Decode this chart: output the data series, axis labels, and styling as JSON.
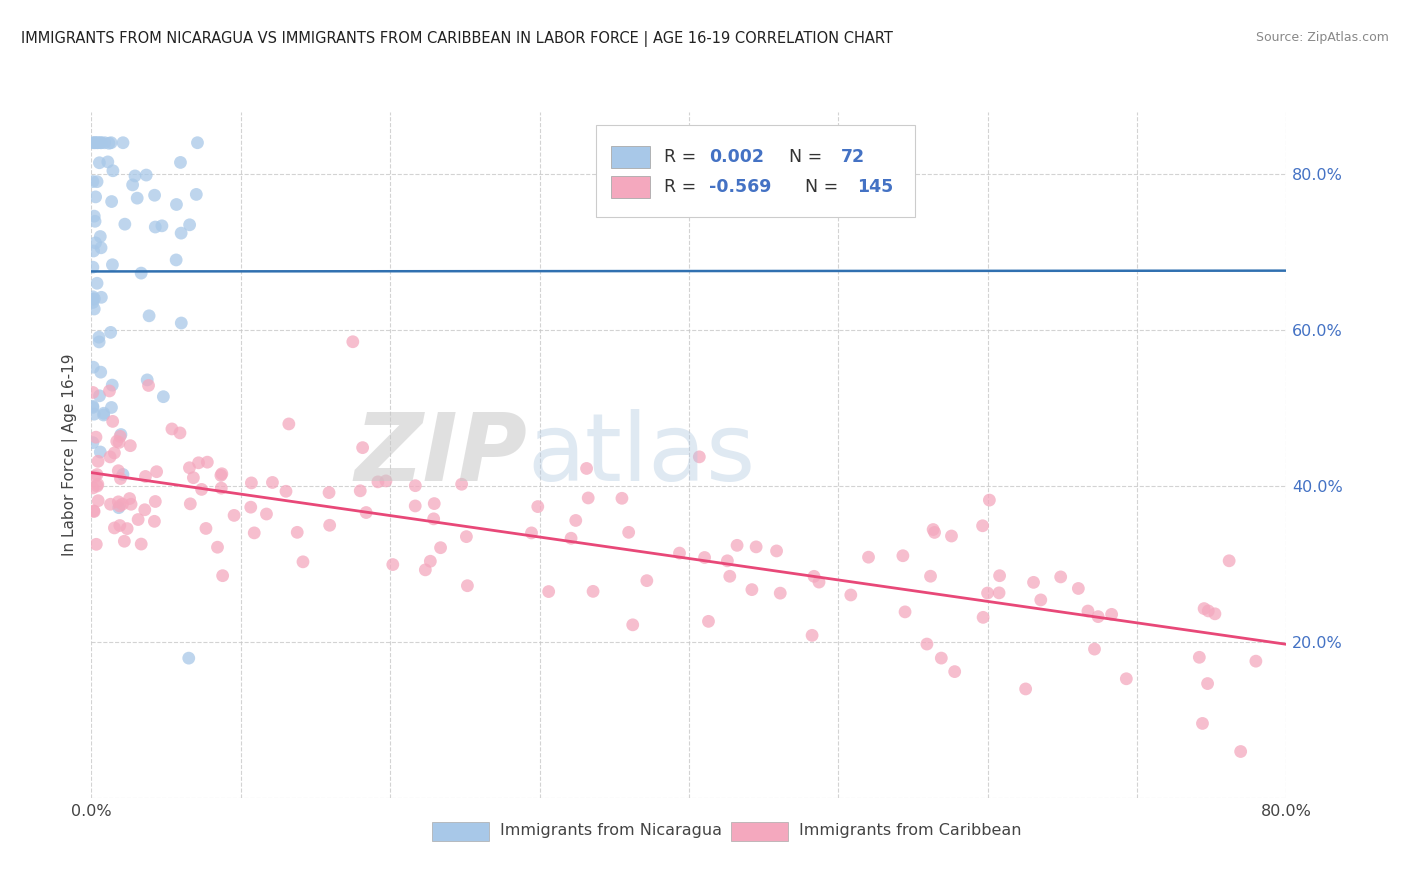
{
  "title": "IMMIGRANTS FROM NICARAGUA VS IMMIGRANTS FROM CARIBBEAN IN LABOR FORCE | AGE 16-19 CORRELATION CHART",
  "source": "Source: ZipAtlas.com",
  "ylabel": "In Labor Force | Age 16-19",
  "r_nicaragua": 0.002,
  "n_nicaragua": 72,
  "r_caribbean": -0.569,
  "n_caribbean": 145,
  "blue_scatter_color": "#a8c8e8",
  "pink_scatter_color": "#f4a8be",
  "blue_line_color": "#3070b0",
  "pink_line_color": "#e84878",
  "text_blue_color": "#4472c4",
  "legend_label_nicaragua": "Immigrants from Nicaragua",
  "legend_label_caribbean": "Immigrants from Caribbean",
  "watermark_zip": "ZIP",
  "watermark_atlas": "atlas",
  "grid_color": "#c8c8c8",
  "title_color": "#222222",
  "source_color": "#888888",
  "axis_label_color": "#444444",
  "tick_color": "#444444",
  "x_min": 0.0,
  "x_max": 0.8,
  "y_min": 0.0,
  "y_max": 0.88
}
